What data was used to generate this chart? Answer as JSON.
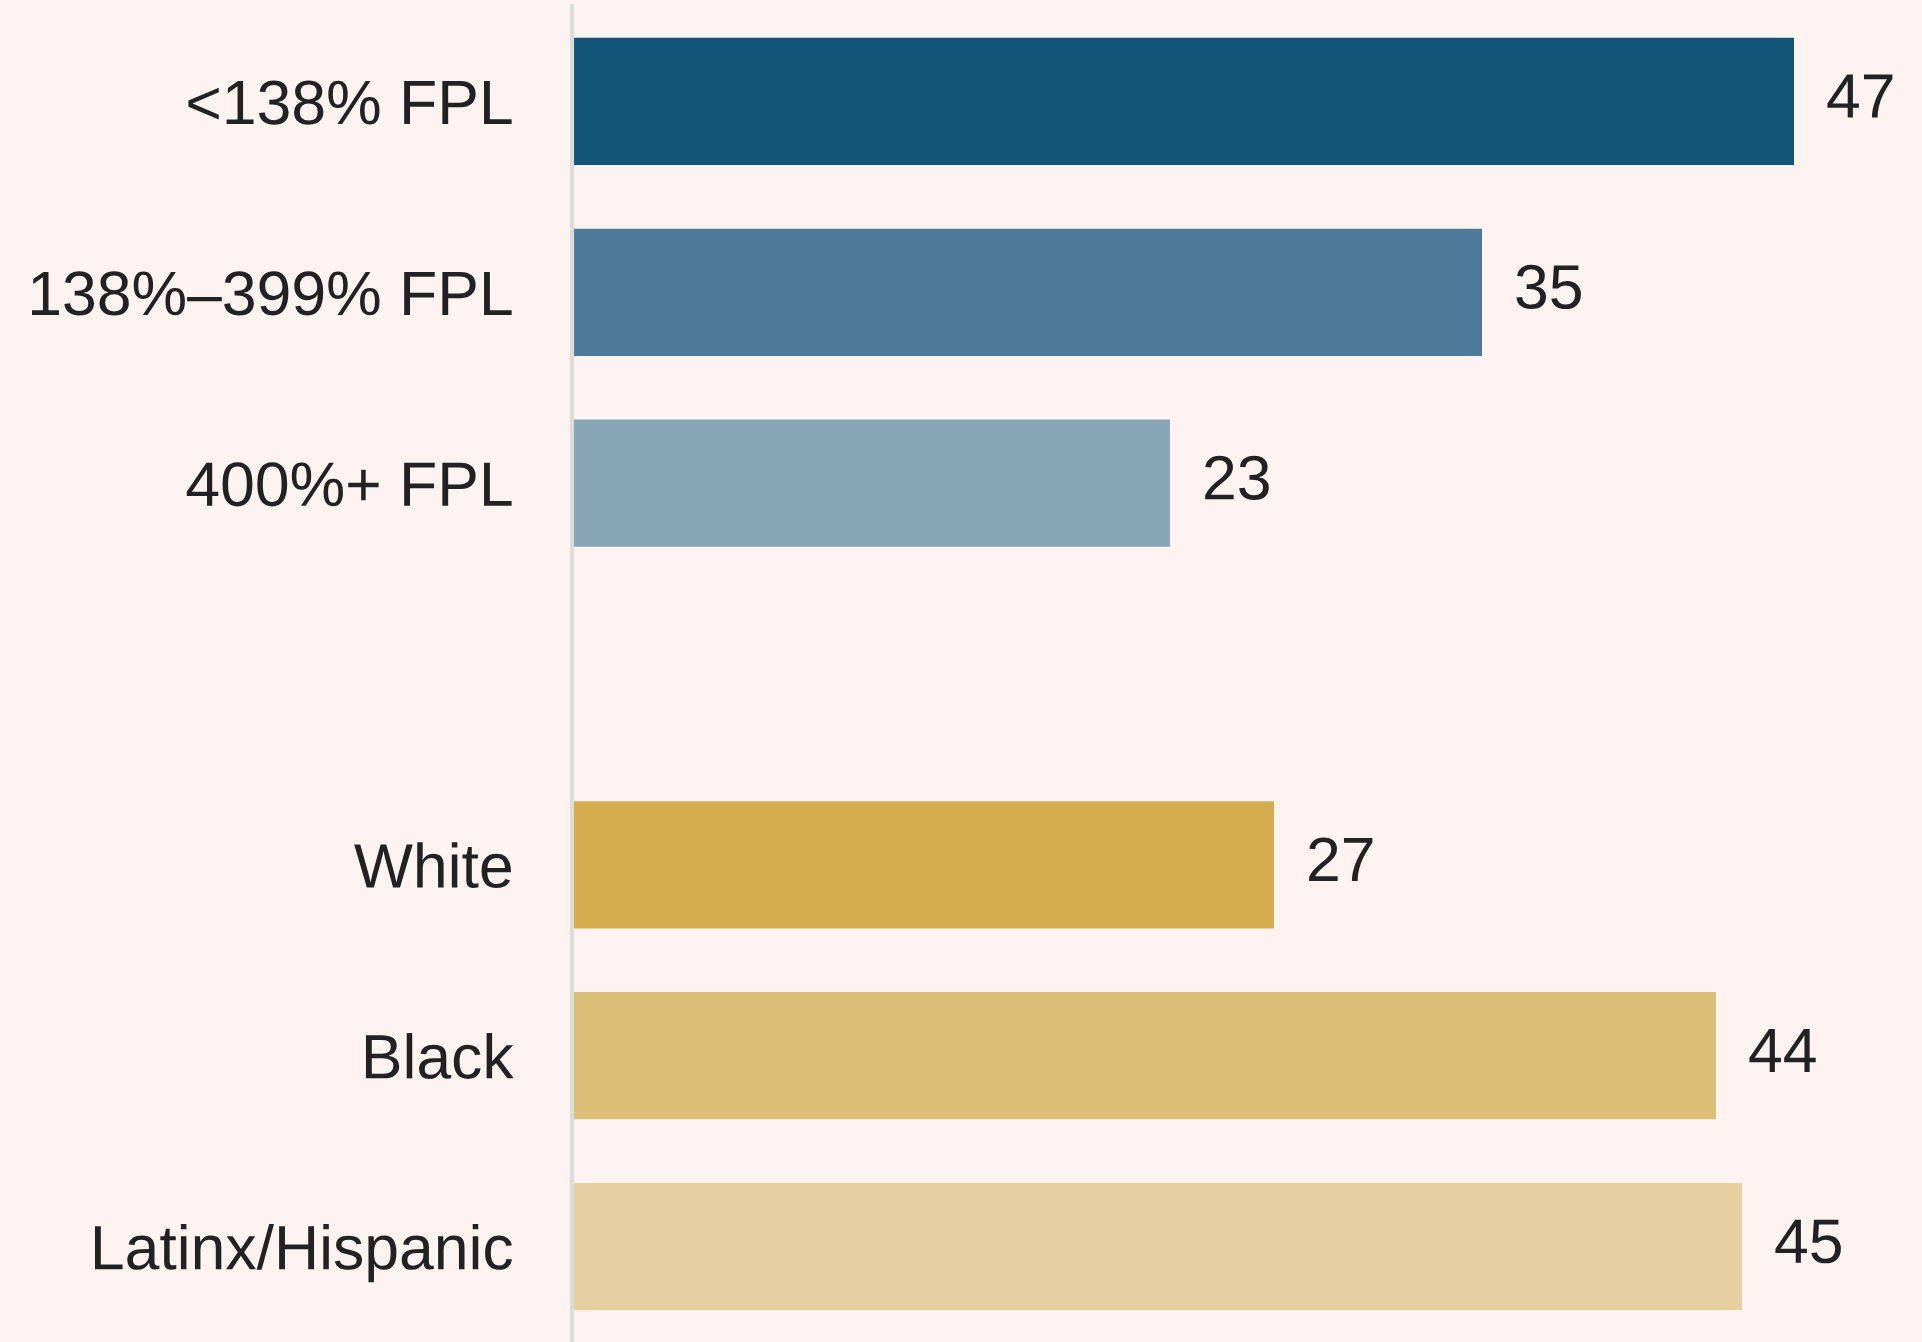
{
  "chart_data": {
    "type": "bar",
    "orientation": "horizontal",
    "categories": [
      "<138% FPL",
      "138%–399% FPL",
      "400%+ FPL",
      null,
      "White",
      "Black",
      "Latinx/Hispanic"
    ],
    "values": [
      47,
      35,
      23,
      null,
      27,
      44,
      45
    ],
    "colors": [
      "#115477",
      "#4e7b99",
      "#88a5b7",
      null,
      "#d4ae4e",
      "#dcbf77",
      "#e7d09f"
    ],
    "data_labels": true,
    "grid": false,
    "legend": false,
    "tick_labels": "y"
  }
}
